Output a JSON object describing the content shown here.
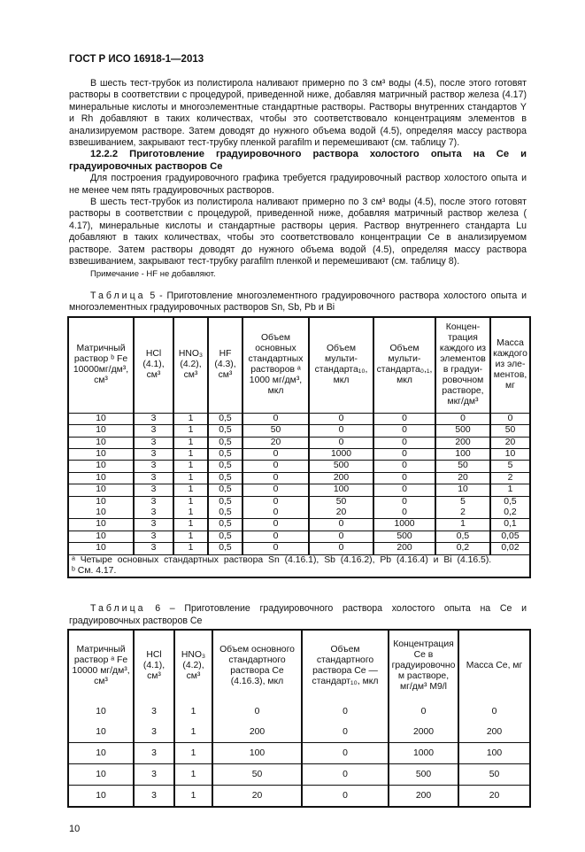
{
  "header": "ГОСТ Р ИСО 16918-1—2013",
  "paragraphs": {
    "p1": "В шесть тест-трубок из полистирола наливают примерно по 3 см³ воды (4.5), после этого готовят растворы в соответствии с процедурой, приведенной ниже, добавляя матричный раствор железа (4.17) минеральные кислоты и многоэлементные стандартные растворы. Растворы внутренних стандартов  Y и Rh добавляют в таких  количествах, чтобы это соответствовало концентрациям элементов в анализируемом растворе. Затем доводят до нужного объема водой (4.5), определяя массу раствора взвешиванием, закрывают тест-трубку пленкой parafilm и перемешивают (см. таблицу 7).",
    "section": "12.2.2 Приготовление градуировочного раствора холостого опыта на Се и градуировочных растворов Се",
    "p2": "Для построения градуировочного графика требуется градуировочный раствор холостого опыта и не менее чем пять градуировочных растворов.",
    "p3": "В шесть тест-трубок из полистирола наливают примерно  по 3 см³ воды (4.5), после этого готовят растворы в соответствии с процедурой, приведенной ниже, добавляя матричный раствор железа ( 4.17), минеральные кислоты и стандартные растворы церия. Раствор внутреннего стандарта Lu  добавляют в таких количествах, чтобы это соответствовало концентрации Се в анализируемом растворе. Затем растворы доводят до нужного объема водой (4.5), определяя массу раствора взвешиванием, закрывают тест-трубку parafilm пленкой и перемешивают (см. таблицу 8).",
    "note": "Примечание -  HF не добавляют."
  },
  "table5": {
    "caption_label": "Таблица",
    "caption": "5 - Приготовление многоэлементного градуировочного раствора холостого опыта и многоэлементных градуировочных растворов  Sn, Sb, Pb и Bi",
    "headers": [
      "Матричный раствор ᵇ Fe 10000мг/дм³, см³",
      "HCl (4.1), см³",
      "HNO₃ (4.2), см³",
      "HF (4.3), см³",
      "Объем основных стандартных растворов ᵃ 1000 мг/дм³, мкл",
      "Объем мульти-стандарта₁₀, мкл",
      "Объем мульти-стандарта₀,₁, мкл",
      "Концен-трация каждого из элементов в градуи-ровочном растворе, мкг/дм³",
      "Масса каждого из эле-ментов, мг"
    ],
    "rows": [
      [
        "10",
        "3",
        "1",
        "0,5",
        "0",
        "0",
        "0",
        "0",
        "0"
      ],
      [
        "10",
        "3",
        "1",
        "0,5",
        "50",
        "0",
        "0",
        "500",
        "50"
      ],
      [
        "10",
        "3",
        "1",
        "0,5",
        "20",
        "0",
        "0",
        "200",
        "20"
      ],
      [
        "10",
        "3",
        "1",
        "0,5",
        "0",
        "1000",
        "0",
        "100",
        "10"
      ],
      [
        "10",
        "3",
        "1",
        "0,5",
        "0",
        "500",
        "0",
        "50",
        "5"
      ],
      [
        "10",
        "3",
        "1",
        "0,5",
        "0",
        "200",
        "0",
        "20",
        "2"
      ],
      [
        "10",
        "3",
        "1",
        "0,5",
        "0",
        "100",
        "0",
        "10",
        "1"
      ],
      [
        "10",
        "3",
        "1",
        "0,5",
        "0",
        "50",
        "0",
        "5",
        "0,5"
      ],
      [
        "10",
        "3",
        "1",
        "0,5",
        "0",
        "20",
        "0",
        "2",
        "0,2"
      ],
      [
        "10",
        "3",
        "1",
        "0,5",
        "0",
        "0",
        "1000",
        "1",
        "0,1"
      ],
      [
        "10",
        "3",
        "1",
        "0,5",
        "0",
        "0",
        "500",
        "0,5",
        "0,05"
      ],
      [
        "10",
        "3",
        "1",
        "0,5",
        "0",
        "0",
        "200",
        "0,2",
        "0,02"
      ]
    ],
    "footnote_a": "ᵃ Четыре основных стандартных раствора  Sn (4.16.1), Sb (4.16.2), Pb (4.16.4)  и  Bi (4.16.5).",
    "footnote_b": "ᵇ   См. 4.17."
  },
  "table6": {
    "caption_label": "Таблица",
    "caption": "6 –  Приготовление градуировочного раствора холостого опыта на Се и градуировочных растворов  Се",
    "headers": [
      "Матричный раствор ᵃ Fe 10000 мг/дм³, см³",
      "HCl (4.1), см³",
      "HNO₃ (4.2), см³",
      "Объем основного стандартного раствора Се (4.16.3), мкл",
      "Объем стандартного раствора Се — стандарт₁₀, мкл",
      "Концентрация Се в градуировочно м растворе, мг/дм³ M9/l",
      "Масса  Се, мг"
    ],
    "rows": [
      [
        "10",
        "3",
        "1",
        "0",
        "0",
        "0",
        "0"
      ],
      [
        "10",
        "3",
        "1",
        "200",
        "0",
        "2000",
        "200"
      ],
      [
        "10",
        "3",
        "1",
        "100",
        "0",
        "1000",
        "100"
      ],
      [
        "10",
        "3",
        "1",
        "50",
        "0",
        "500",
        "50"
      ],
      [
        "10",
        "3",
        "1",
        "20",
        "0",
        "200",
        "20"
      ]
    ]
  },
  "page_number": "10"
}
